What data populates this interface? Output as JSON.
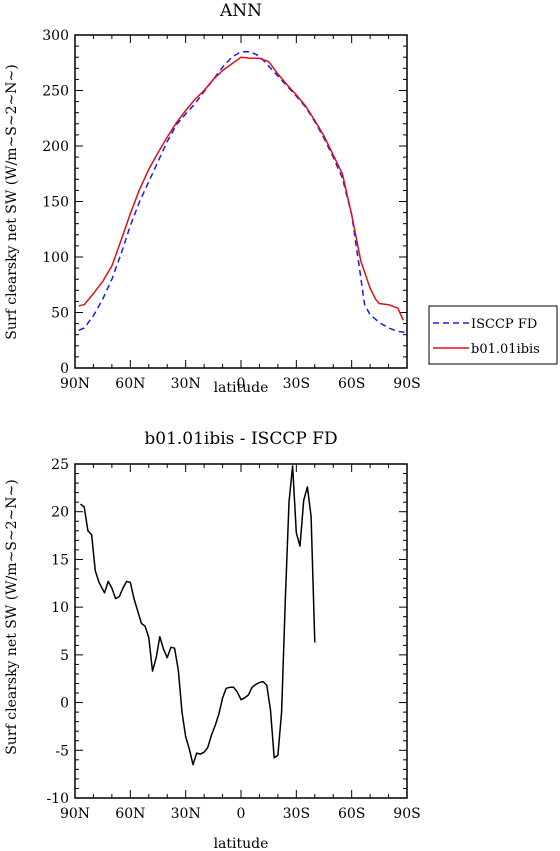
{
  "chart_data": [
    {
      "type": "line",
      "title": "ANN",
      "xlabel": "latitude",
      "ylabel": "Surf clearsky net SW (W/m~S~2~N~)",
      "xlim": [
        -90,
        90
      ],
      "ylim": [
        0,
        300
      ],
      "x_ticks": [
        {
          "value": -90,
          "label": "90N"
        },
        {
          "value": -60,
          "label": "60N"
        },
        {
          "value": -30,
          "label": "30N"
        },
        {
          "value": 0,
          "label": "0"
        },
        {
          "value": 30,
          "label": "30S"
        },
        {
          "value": 60,
          "label": "60S"
        },
        {
          "value": 90,
          "label": "90S"
        }
      ],
      "y_ticks": [
        0,
        50,
        100,
        150,
        200,
        250,
        300
      ],
      "y_tick_labels": [
        "0",
        "50",
        "100",
        "150",
        "200",
        "250",
        "300"
      ],
      "legend": {
        "placement": "right",
        "entries": [
          "ISCCP FD",
          "b01.01ibis"
        ]
      },
      "series": [
        {
          "name": "ISCCP FD",
          "color": "#1a1aff",
          "dash": "dashed",
          "points": [
            [
              -88,
              34
            ],
            [
              -85,
              36
            ],
            [
              -80,
              47
            ],
            [
              -75,
              62
            ],
            [
              -70,
              80
            ],
            [
              -65,
              103
            ],
            [
              -60,
              128
            ],
            [
              -55,
              150
            ],
            [
              -50,
              168
            ],
            [
              -45,
              186
            ],
            [
              -40,
              204
            ],
            [
              -35,
              219
            ],
            [
              -30,
              229
            ],
            [
              -25,
              238
            ],
            [
              -20,
              249
            ],
            [
              -15,
              260
            ],
            [
              -10,
              271
            ],
            [
              -5,
              280
            ],
            [
              0,
              285
            ],
            [
              5,
              285
            ],
            [
              10,
              281
            ],
            [
              15,
              272
            ],
            [
              20,
              263
            ],
            [
              25,
              254
            ],
            [
              30,
              245
            ],
            [
              35,
              235
            ],
            [
              40,
              222
            ],
            [
              45,
              207
            ],
            [
              50,
              190
            ],
            [
              55,
              171
            ],
            [
              60,
              138
            ],
            [
              65,
              81
            ],
            [
              67,
              57
            ],
            [
              70,
              48
            ],
            [
              75,
              41
            ],
            [
              80,
              36
            ],
            [
              85,
              33
            ],
            [
              90,
              32
            ]
          ]
        },
        {
          "name": "b01.01ibis",
          "color": "#e01010",
          "dash": "solid",
          "points": [
            [
              -88,
              56
            ],
            [
              -85,
              57
            ],
            [
              -80,
              67
            ],
            [
              -75,
              78
            ],
            [
              -70,
              92
            ],
            [
              -65,
              115
            ],
            [
              -60,
              139
            ],
            [
              -55,
              161
            ],
            [
              -50,
              179
            ],
            [
              -45,
              194
            ],
            [
              -40,
              208
            ],
            [
              -35,
              221
            ],
            [
              -30,
              232
            ],
            [
              -25,
              242
            ],
            [
              -20,
              250
            ],
            [
              -15,
              260
            ],
            [
              -10,
              268
            ],
            [
              -5,
              274
            ],
            [
              0,
              280
            ],
            [
              5,
              279
            ],
            [
              10,
              279
            ],
            [
              15,
              276
            ],
            [
              20,
              265
            ],
            [
              25,
              255
            ],
            [
              30,
              246
            ],
            [
              35,
              236
            ],
            [
              40,
              223
            ],
            [
              45,
              209
            ],
            [
              50,
              192
            ],
            [
              55,
              175
            ],
            [
              60,
              138
            ],
            [
              65,
              96
            ],
            [
              70,
              72
            ],
            [
              73,
              62
            ],
            [
              75,
              58
            ],
            [
              80,
              57
            ],
            [
              85,
              54
            ],
            [
              88,
              43
            ]
          ]
        }
      ]
    },
    {
      "type": "line",
      "title": "b01.01ibis - ISCCP FD",
      "xlabel": "latitude",
      "ylabel": "Surf clearsky net SW (W/m~S~2~N~)",
      "xlim": [
        -90,
        90
      ],
      "ylim": [
        -10,
        25
      ],
      "x_ticks": [
        {
          "value": -90,
          "label": "90N"
        },
        {
          "value": -60,
          "label": "60N"
        },
        {
          "value": -30,
          "label": "30N"
        },
        {
          "value": 0,
          "label": "0"
        },
        {
          "value": 30,
          "label": "30S"
        },
        {
          "value": 60,
          "label": "60S"
        },
        {
          "value": 90,
          "label": "90S"
        }
      ],
      "y_ticks": [
        -10,
        -5,
        0,
        5,
        10,
        15,
        20,
        25
      ],
      "y_tick_labels": [
        "-10",
        "-5",
        "0",
        "5",
        "10",
        "15",
        "20",
        "25"
      ],
      "series": [
        {
          "color": "#000000",
          "dash": "solid",
          "points": [
            [
              -87,
              20.8
            ],
            [
              -85,
              20.5
            ],
            [
              -83,
              18
            ],
            [
              -81,
              17.6
            ],
            [
              -79,
              13.8
            ],
            [
              -77,
              12.6
            ],
            [
              -74,
              11.5
            ],
            [
              -72,
              12.7
            ],
            [
              -70,
              12
            ],
            [
              -68,
              10.9
            ],
            [
              -66,
              11.1
            ],
            [
              -64,
              12
            ],
            [
              -62,
              12.7
            ],
            [
              -60,
              12.6
            ],
            [
              -58,
              10.9
            ],
            [
              -56,
              9.6
            ],
            [
              -54,
              8.3
            ],
            [
              -52,
              8
            ],
            [
              -50,
              6.8
            ],
            [
              -48,
              3.3
            ],
            [
              -46,
              4.7
            ],
            [
              -44,
              6.9
            ],
            [
              -42,
              5.6
            ],
            [
              -40,
              4.7
            ],
            [
              -38,
              5.8
            ],
            [
              -36,
              5.7
            ],
            [
              -34,
              3.4
            ],
            [
              -32,
              -1
            ],
            [
              -30,
              -3.6
            ],
            [
              -28,
              -4.9
            ],
            [
              -26,
              -6.5
            ],
            [
              -24,
              -5.3
            ],
            [
              -22,
              -5.4
            ],
            [
              -20,
              -5.2
            ],
            [
              -18,
              -4.7
            ],
            [
              -16,
              -3.4
            ],
            [
              -14,
              -2.4
            ],
            [
              -12,
              -1.2
            ],
            [
              -10,
              0.5
            ],
            [
              -8,
              1.5
            ],
            [
              -6,
              1.6
            ],
            [
              -4,
              1.6
            ],
            [
              -2,
              1.1
            ],
            [
              0,
              0.3
            ],
            [
              2,
              0.5
            ],
            [
              4,
              0.8
            ],
            [
              6,
              1.6
            ],
            [
              8,
              1.9
            ],
            [
              10,
              2.1
            ],
            [
              12,
              2.2
            ],
            [
              14,
              1.8
            ],
            [
              16,
              -0.8
            ],
            [
              18,
              -5.8
            ],
            [
              20,
              -5.5
            ],
            [
              22,
              -1
            ],
            [
              24,
              10.7
            ],
            [
              26,
              21
            ],
            [
              28,
              24.8
            ],
            [
              30,
              17.8
            ],
            [
              32,
              16.4
            ],
            [
              34,
              21.2
            ],
            [
              36,
              22.6
            ],
            [
              38,
              19.5
            ],
            [
              40,
              6.3
            ]
          ]
        }
      ]
    }
  ]
}
